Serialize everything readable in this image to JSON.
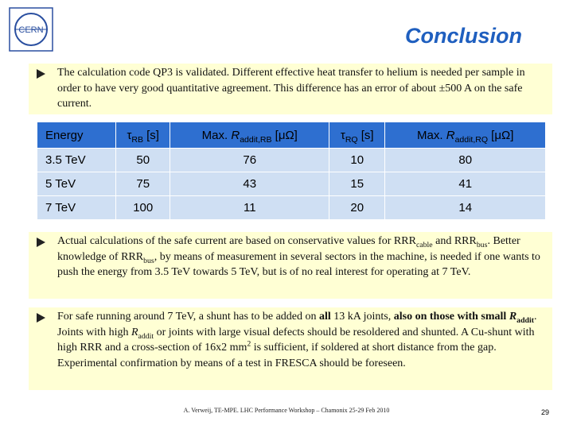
{
  "header": {
    "title": "Conclusion",
    "logo": "CERN"
  },
  "bullets": [
    [
      {
        "text": "The calculation code QP3 is validated. Different effective heat transfer to helium is needed per sample in order to have very good quantitative agreement. This difference has an error of about ±500 A on the safe current.",
        "style": "plain"
      }
    ],
    [
      {
        "text": "Actual calculations of the safe current are based on conservative values for RRR",
        "style": "plain"
      },
      {
        "text": "cable",
        "style": "sub"
      },
      {
        "text": " and RRR",
        "style": "plain"
      },
      {
        "text": "bus",
        "style": "sub"
      },
      {
        "text": ". Better knowledge of RRR",
        "style": "plain"
      },
      {
        "text": "bus",
        "style": "sub"
      },
      {
        "text": ", by means of measurement in several sectors in the machine, is needed if one wants to push the energy from 3.5 TeV towards 5 TeV, but is of no real interest for operating at 7 TeV.",
        "style": "plain"
      }
    ],
    [
      {
        "text": "For safe running around 7 TeV, a shunt has to be added on ",
        "style": "plain"
      },
      {
        "text": "all",
        "style": "bold"
      },
      {
        "text": " 13 kA joints, ",
        "style": "plain"
      },
      {
        "text": "also on those with small ",
        "style": "bold"
      },
      {
        "text": "R",
        "style": "bold-italic"
      },
      {
        "text": "addit",
        "style": "bold-sub"
      },
      {
        "text": ". Joints with high ",
        "style": "plain"
      },
      {
        "text": "R",
        "style": "italic"
      },
      {
        "text": "addit",
        "style": "sub"
      },
      {
        "text": " or joints with large visual defects should be resoldered and shunted. A Cu-shunt with high RRR and a cross-section of 16x2 mm",
        "style": "plain"
      },
      {
        "text": "2",
        "style": "sup"
      },
      {
        "text": " is sufficient, if soldered at short distance from the gap. Experimental confirmation by means of a test in FRESCA should be foreseen.",
        "style": "plain"
      }
    ]
  ],
  "table": {
    "header": [
      [
        {
          "text": "Energy",
          "style": "plain"
        }
      ],
      [
        {
          "text": "τ",
          "style": "plain"
        },
        {
          "text": "RB",
          "style": "sub"
        },
        {
          "text": " [s]",
          "style": "plain"
        }
      ],
      [
        {
          "text": "Max. ",
          "style": "plain"
        },
        {
          "text": "R",
          "style": "italic"
        },
        {
          "text": "addit,RB",
          "style": "sub"
        },
        {
          "text": " [μΩ]",
          "style": "plain"
        }
      ],
      [
        {
          "text": "τ",
          "style": "plain"
        },
        {
          "text": "RQ",
          "style": "sub"
        },
        {
          "text": " [s]",
          "style": "plain"
        }
      ],
      [
        {
          "text": "Max. ",
          "style": "plain"
        },
        {
          "text": "R",
          "style": "italic"
        },
        {
          "text": "addit,RQ",
          "style": "sub"
        },
        {
          "text": " [μΩ]",
          "style": "plain"
        }
      ]
    ],
    "rows": [
      [
        "3.5 TeV",
        50,
        76,
        10,
        80
      ],
      [
        "5 TeV",
        75,
        43,
        15,
        41
      ],
      [
        "7 TeV",
        100,
        11,
        20,
        14
      ]
    ]
  },
  "footer": {
    "text": "A. Verweij, TE-MPE. LHC Performance Workshop – Chamonix 25-29 Feb 2010",
    "page": "29"
  }
}
